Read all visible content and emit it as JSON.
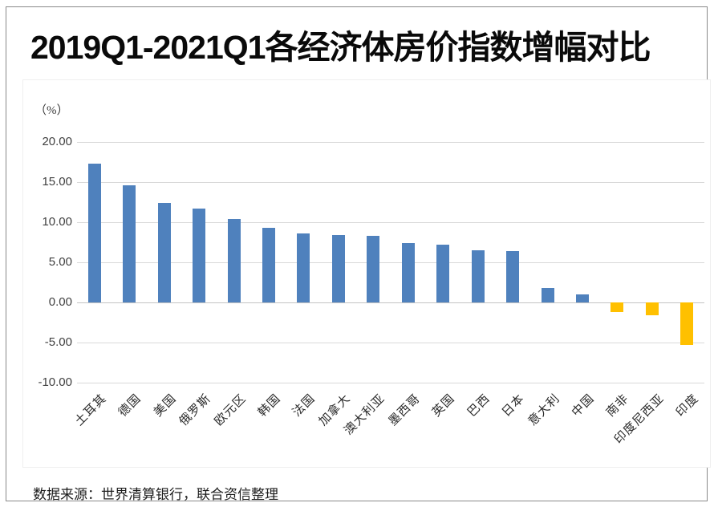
{
  "page": {
    "title": "2019Q1-2021Q1各经济体房价指数增幅对比",
    "source_note": "数据来源：世界清算银行，联合资信整理"
  },
  "chart_data": {
    "type": "bar",
    "title": "2019Q1-2021Q1各经济体房价指数增幅对比",
    "unit_label": "（%）",
    "categories": [
      "土耳其",
      "德国",
      "美国",
      "俄罗斯",
      "欧元区",
      "韩国",
      "法国",
      "加拿大",
      "澳大利亚",
      "墨西哥",
      "英国",
      "巴西",
      "日本",
      "意大利",
      "中国",
      "南非",
      "印度尼西亚",
      "印度"
    ],
    "values": [
      17.3,
      14.6,
      12.4,
      11.7,
      10.4,
      9.3,
      8.6,
      8.4,
      8.3,
      7.4,
      7.2,
      6.5,
      6.4,
      1.8,
      1.0,
      -1.2,
      -1.6,
      -5.3
    ],
    "xlabel": "",
    "ylabel": "（%）",
    "ylim": [
      -10,
      20
    ],
    "ytick_step": 5,
    "ytick_labels": [
      "20.00",
      "15.00",
      "10.00",
      "5.00",
      "0.00",
      "-5.00",
      "-10.00"
    ],
    "grid": true,
    "legend": "none",
    "colors": {
      "positive": "#4F81BD",
      "negative": "#FFC000",
      "gridline": "#D9D9D9",
      "zero_line": "#C3C3C3"
    },
    "source_note": "数据来源：世界清算银行，联合资信整理"
  }
}
